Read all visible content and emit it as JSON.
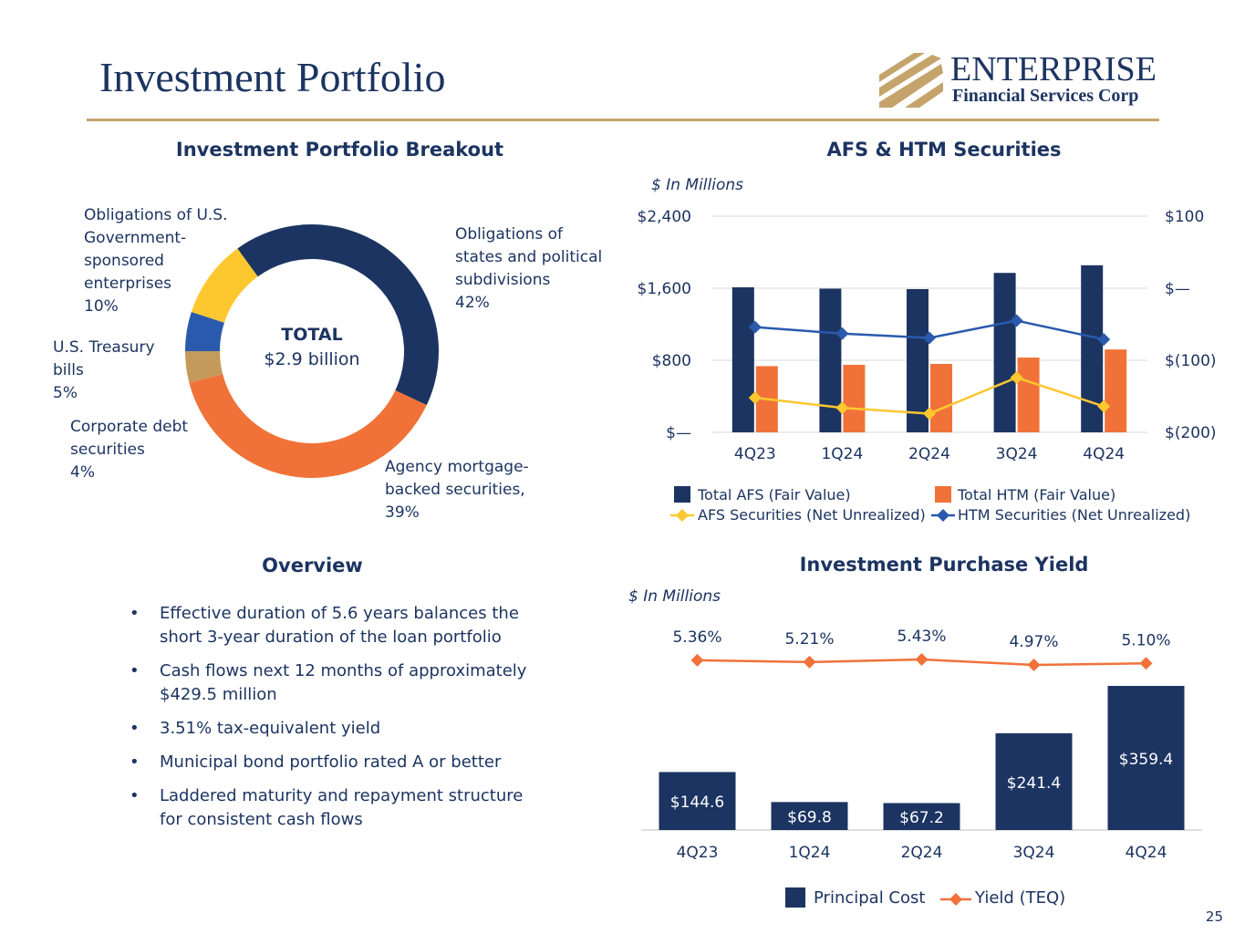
{
  "header": {
    "title": "Investment Portfolio",
    "logo_name": "ENTERPRISE",
    "logo_sub": "Financial Services Corp",
    "page_number": "25"
  },
  "colors": {
    "navy": "#1c3461",
    "orange": "#f07239",
    "yellow": "#fdc82f",
    "blue": "#2a5aad",
    "tan": "#c49a5a",
    "gold": "#c5a46b",
    "grid": "#d9d9d9"
  },
  "breakout": {
    "heading": "Investment Portfolio Breakout",
    "center_title": "TOTAL",
    "center_value": "$2.9 billion",
    "labels": {
      "states": [
        "Obligations of",
        "states and political",
        "subdivisions",
        "42%"
      ],
      "agency": [
        "Agency mortgage-",
        "backed securities,",
        "39%"
      ],
      "corporate": [
        "Corporate debt",
        "securities",
        "4%"
      ],
      "treasury": [
        "U.S. Treasury",
        "bills",
        "5%"
      ],
      "gse": [
        "Obligations of U.S.",
        "Government-",
        "sponsored",
        "enterprises",
        "10%"
      ]
    }
  },
  "afs": {
    "heading": "AFS & HTM Securities",
    "unit": "$ In Millions",
    "left_ticks": [
      "$2,400",
      "$1,600",
      "$800",
      "$—"
    ],
    "right_ticks": [
      "$100",
      "$—",
      "$(100)",
      "$(200)"
    ],
    "legend": [
      "Total AFS (Fair Value)",
      "Total HTM (Fair Value)",
      "AFS Securities (Net Unrealized)",
      "HTM Securities (Net Unrealized)"
    ]
  },
  "overview": {
    "heading": "Overview",
    "bullets": [
      "Effective duration of 5.6 years balances the short 3-year duration of the loan portfolio",
      "Cash flows next 12 months of approximately $429.5 million",
      "3.51% tax-equivalent yield",
      "Municipal bond portfolio rated A or better",
      "Laddered maturity and repayment structure for consistent cash flows"
    ]
  },
  "yield": {
    "heading": "Investment Purchase Yield",
    "unit": "$ In Millions",
    "legend": [
      "Principal Cost",
      "Yield (TEQ)"
    ]
  },
  "chart_data": [
    {
      "type": "pie",
      "title": "Investment Portfolio Breakout",
      "total": "$2.9 billion",
      "slices": [
        {
          "name": "Obligations of states and political subdivisions",
          "value": 42
        },
        {
          "name": "Agency mortgage-backed securities",
          "value": 39
        },
        {
          "name": "Corporate debt securities",
          "value": 4
        },
        {
          "name": "U.S. Treasury bills",
          "value": 5
        },
        {
          "name": "Obligations of U.S. Government-sponsored enterprises",
          "value": 10
        }
      ]
    },
    {
      "type": "bar",
      "title": "AFS & HTM Securities",
      "categories": [
        "4Q23",
        "1Q24",
        "2Q24",
        "3Q24",
        "4Q24"
      ],
      "ylim": [
        0,
        2400
      ],
      "y2lim": [
        -200,
        100
      ],
      "series": [
        {
          "name": "Total AFS (Fair Value)",
          "axis": "left",
          "kind": "bar",
          "values": [
            1610,
            1595,
            1590,
            1770,
            1855
          ]
        },
        {
          "name": "Total HTM (Fair Value)",
          "axis": "left",
          "kind": "bar",
          "values": [
            735,
            750,
            760,
            830,
            920
          ]
        },
        {
          "name": "AFS Securities (Net Unrealized)",
          "axis": "right",
          "kind": "line",
          "values": [
            -152,
            -166,
            -174,
            -124,
            -164
          ]
        },
        {
          "name": "HTM Securities (Net Unrealized)",
          "axis": "right",
          "kind": "line",
          "values": [
            -54,
            -63,
            -69,
            -45,
            -71
          ]
        }
      ]
    },
    {
      "type": "bar",
      "title": "Investment Purchase Yield",
      "categories": [
        "4Q23",
        "1Q24",
        "2Q24",
        "3Q24",
        "4Q24"
      ],
      "series": [
        {
          "name": "Principal Cost",
          "kind": "bar",
          "values": [
            144.6,
            69.8,
            67.2,
            241.4,
            359.4
          ],
          "labels": [
            "$144.6",
            "$69.8",
            "$67.2",
            "$241.4",
            "$359.4"
          ]
        },
        {
          "name": "Yield (TEQ)",
          "kind": "line",
          "values": [
            5.36,
            5.21,
            5.43,
            4.97,
            5.1
          ],
          "labels": [
            "5.36%",
            "5.21%",
            "5.43%",
            "4.97%",
            "5.10%"
          ]
        }
      ]
    }
  ]
}
